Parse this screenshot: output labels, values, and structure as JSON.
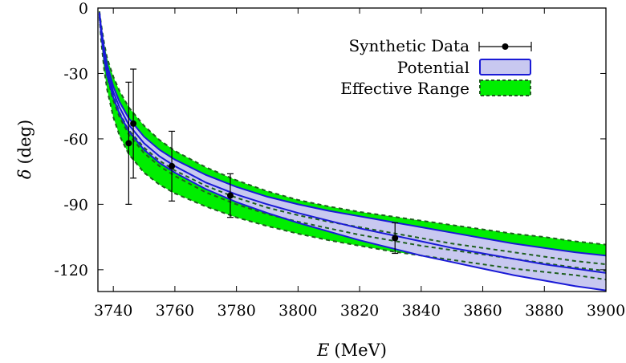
{
  "chart_data": {
    "type": "line",
    "title": "",
    "xlabel": "E (MeV)",
    "xlabel_symbol": "E",
    "xlabel_unit": "(MeV)",
    "ylabel": "δ (deg)",
    "ylabel_symbol": "δ",
    "ylabel_unit": "(deg)",
    "xlim": [
      3735,
      3900
    ],
    "ylim": [
      -130,
      0
    ],
    "x_ticks": [
      3740,
      3760,
      3780,
      3800,
      3820,
      3840,
      3860,
      3880,
      3900
    ],
    "y_ticks": [
      0,
      -30,
      -60,
      -90,
      -120
    ],
    "x_tick_labels": [
      "3740",
      "3760",
      "3780",
      "3800",
      "3820",
      "3840",
      "3860",
      "3880",
      "3900"
    ],
    "y_tick_labels": [
      "0",
      "-30",
      "-60",
      "-90",
      "-120"
    ],
    "grid": false,
    "legend_position": "top-right",
    "legend": {
      "synthetic_label": "Synthetic Data",
      "potential_label": "Potential",
      "effective_range_label": "Effective Range"
    },
    "colors": {
      "potential_line": "#1a1ad6",
      "potential_fill": "#c8c8f0",
      "effective_range_line": "#1f5f1f",
      "effective_range_fill": "#00ee00",
      "data": "#000000"
    },
    "series": [
      {
        "name": "Synthetic Data",
        "kind": "errorbar",
        "points": [
          {
            "x": 3745.0,
            "y": -62.0,
            "err": 28.0
          },
          {
            "x": 3746.5,
            "y": -53.0,
            "err": 25.0
          },
          {
            "x": 3759.0,
            "y": -72.5,
            "err": 16.0
          },
          {
            "x": 3778.0,
            "y": -86.0,
            "err": 10.0
          },
          {
            "x": 3831.5,
            "y": -105.5,
            "err": 7.0
          }
        ]
      },
      {
        "name": "Potential",
        "kind": "band",
        "x": [
          3735.5,
          3736,
          3737,
          3738,
          3740,
          3742,
          3745,
          3750,
          3755,
          3760,
          3770,
          3780,
          3790,
          3800,
          3810,
          3820,
          3830,
          3840,
          3850,
          3860,
          3870,
          3880,
          3890,
          3900
        ],
        "upper": [
          -2.0,
          -8.5,
          -18.5,
          -26.0,
          -36.0,
          -43.0,
          -50.5,
          -59.0,
          -65.0,
          -69.5,
          -76.5,
          -82.0,
          -86.5,
          -90.0,
          -93.0,
          -95.5,
          -98.0,
          -100.5,
          -103.0,
          -105.5,
          -108.0,
          -110.0,
          -112.0,
          -113.5
        ],
        "lower": [
          -3.0,
          -11.0,
          -23.0,
          -31.0,
          -41.0,
          -48.5,
          -56.5,
          -65.0,
          -71.0,
          -75.5,
          -83.0,
          -89.0,
          -94.0,
          -98.5,
          -102.5,
          -106.5,
          -110.0,
          -113.5,
          -116.5,
          -119.5,
          -122.5,
          -125.0,
          -127.5,
          -129.5
        ],
        "central": [
          -2.5,
          -9.5,
          -20.5,
          -28.5,
          -38.5,
          -45.5,
          -53.5,
          -62.0,
          -68.0,
          -72.5,
          -80.0,
          -85.5,
          -90.0,
          -94.0,
          -97.5,
          -101.0,
          -104.0,
          -107.0,
          -110.0,
          -112.5,
          -115.0,
          -117.5,
          -119.5,
          -121.5
        ]
      },
      {
        "name": "Effective Range",
        "kind": "band",
        "x": [
          3735.5,
          3736,
          3737,
          3738,
          3740,
          3742,
          3745,
          3750,
          3755,
          3760,
          3770,
          3780,
          3790,
          3800,
          3810,
          3820,
          3830,
          3840,
          3850,
          3860,
          3870,
          3880,
          3890,
          3900
        ],
        "upper": [
          -1.5,
          -7.0,
          -16.0,
          -23.0,
          -31.5,
          -38.0,
          -45.5,
          -54.0,
          -60.5,
          -65.5,
          -73.0,
          -79.0,
          -84.0,
          -88.0,
          -91.0,
          -93.5,
          -95.5,
          -97.5,
          -99.5,
          -101.5,
          -103.5,
          -105.0,
          -107.0,
          -108.5
        ],
        "lower": [
          -4.0,
          -14.0,
          -28.0,
          -37.5,
          -50.0,
          -58.5,
          -67.0,
          -75.5,
          -81.0,
          -85.0,
          -91.0,
          -96.0,
          -100.0,
          -103.5,
          -106.5,
          -109.0,
          -111.5,
          -113.5,
          -115.5,
          -117.5,
          -119.5,
          -121.0,
          -122.5,
          -124.5
        ],
        "inner": [
          [
            -2.5,
            -10.0,
            -21.5,
            -30.0,
            -40.5,
            -48.0,
            -56.0,
            -64.0,
            -70.0,
            -74.5,
            -81.5,
            -87.0,
            -91.5,
            -95.0,
            -98.0,
            -100.5,
            -103.0,
            -105.5,
            -108.0,
            -110.0,
            -112.0,
            -114.0,
            -116.0,
            -117.5
          ],
          [
            -3.0,
            -11.0,
            -23.0,
            -31.5,
            -42.5,
            -50.0,
            -58.0,
            -66.5,
            -72.5,
            -77.0,
            -84.5,
            -90.0,
            -94.5,
            -98.0,
            -101.0,
            -104.0,
            -106.5,
            -109.0,
            -111.0,
            -113.0,
            -115.0,
            -117.0,
            -119.0,
            -120.5
          ]
        ]
      }
    ]
  }
}
